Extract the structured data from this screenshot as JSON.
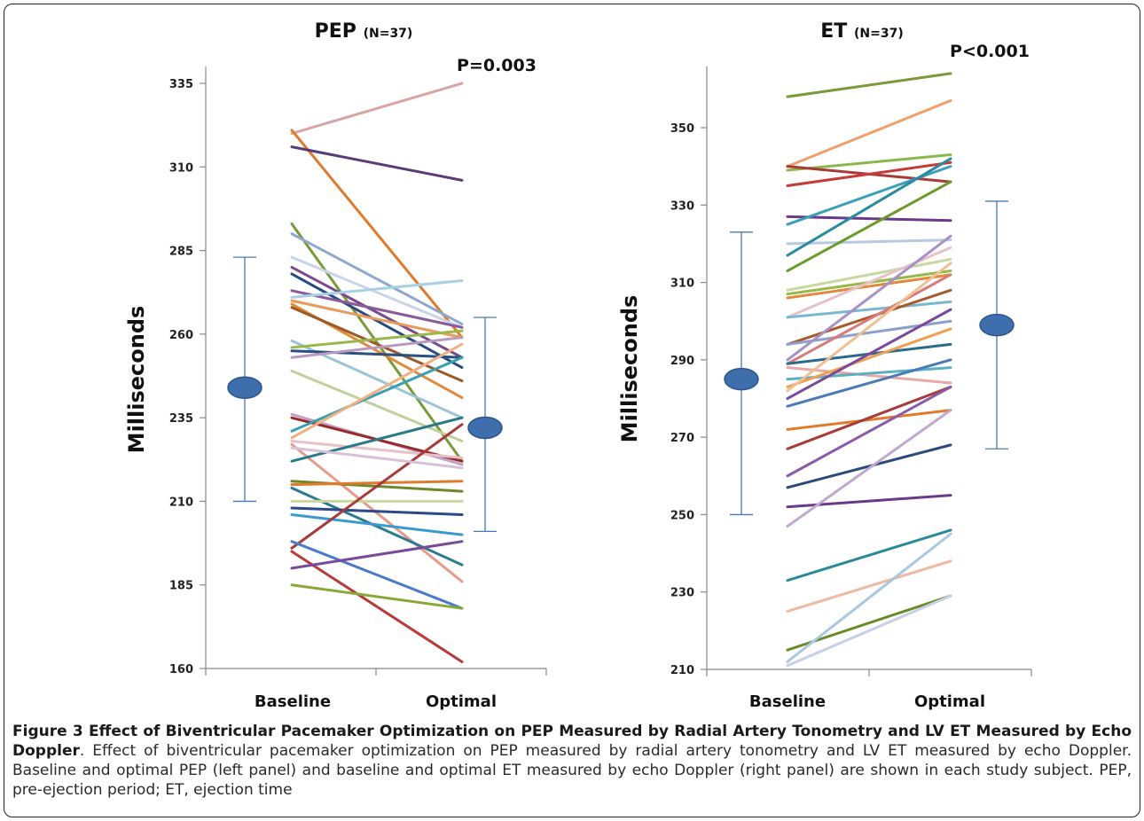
{
  "caption": {
    "title": "Figure 3 Effect of Biventricular Pacemaker Optimization on PEP Measured by Radial Artery Tonometry and LV ET Measured by Echo Doppler",
    "body": ". Effect of biventricular pacemaker optimization on PEP measured by radial artery tonometry and LV ET measured by echo Doppler. Baseline and optimal PEP (left panel) and baseline and optimal ET measured by echo Doppler (right panel) are shown in each study subject. PEP, pre-ejection period; ET, ejection time"
  },
  "chart_data": [
    {
      "type": "line",
      "title": "PEP",
      "title_n": "(N=37)",
      "p_value": "P=0.003",
      "ylabel": "Milliseconds",
      "categories": [
        "Baseline",
        "Optimal"
      ],
      "ylim": [
        160,
        340
      ],
      "yticks": [
        160,
        185,
        210,
        235,
        260,
        285,
        310,
        335
      ],
      "series": [
        {
          "values": [
            320,
            335
          ],
          "color": "#d8a4a4"
        },
        {
          "values": [
            321,
            259
          ],
          "color": "#e07b2c"
        },
        {
          "values": [
            316,
            306
          ],
          "color": "#5a3a78"
        },
        {
          "values": [
            293,
            222
          ],
          "color": "#7a9a3a"
        },
        {
          "values": [
            290,
            263
          ],
          "color": "#8ea8d0"
        },
        {
          "values": [
            283,
            262
          ],
          "color": "#c9d3ea"
        },
        {
          "values": [
            280,
            253
          ],
          "color": "#7a4a8a"
        },
        {
          "values": [
            278,
            250
          ],
          "color": "#2a4a82"
        },
        {
          "values": [
            273,
            262
          ],
          "color": "#8a5a9a"
        },
        {
          "values": [
            271,
            276
          ],
          "color": "#a8d0e4"
        },
        {
          "values": [
            270,
            259
          ],
          "color": "#e89a5a"
        },
        {
          "values": [
            269,
            241
          ],
          "color": "#e38a3a"
        },
        {
          "values": [
            268,
            246
          ],
          "color": "#9a5a2a"
        },
        {
          "values": [
            258,
            235
          ],
          "color": "#9ac4d8"
        },
        {
          "values": [
            256,
            261
          ],
          "color": "#9ab84a"
        },
        {
          "values": [
            255,
            253
          ],
          "color": "#2a5080"
        },
        {
          "values": [
            253,
            259
          ],
          "color": "#b89ac0"
        },
        {
          "values": [
            249,
            228
          ],
          "color": "#c0d09a"
        },
        {
          "values": [
            236,
            221
          ],
          "color": "#c0a0c8"
        },
        {
          "values": [
            235,
            222
          ],
          "color": "#9a2a2a"
        },
        {
          "values": [
            231,
            253
          ],
          "color": "#3aa0b0"
        },
        {
          "values": [
            229,
            257
          ],
          "color": "#f0b080"
        },
        {
          "values": [
            228,
            223
          ],
          "color": "#e8c0c8"
        },
        {
          "values": [
            227,
            186
          ],
          "color": "#e89a8a"
        },
        {
          "values": [
            222,
            235
          ],
          "color": "#2a7a8a"
        },
        {
          "values": [
            216,
            213
          ],
          "color": "#6a8a2a"
        },
        {
          "values": [
            215,
            216
          ],
          "color": "#e07b2c"
        },
        {
          "values": [
            214,
            191
          ],
          "color": "#2a7a90"
        },
        {
          "values": [
            210,
            210
          ],
          "color": "#c8d8a0"
        },
        {
          "values": [
            208,
            206
          ],
          "color": "#2a4a8a"
        },
        {
          "values": [
            206,
            200
          ],
          "color": "#3a9ad0"
        },
        {
          "values": [
            196,
            233
          ],
          "color": "#a83a3a"
        },
        {
          "values": [
            195,
            162
          ],
          "color": "#b83a3a"
        },
        {
          "values": [
            198,
            178
          ],
          "color": "#4a7ac8"
        },
        {
          "values": [
            190,
            198
          ],
          "color": "#7a4a9a"
        },
        {
          "values": [
            185,
            178
          ],
          "color": "#8aa83a"
        },
        {
          "values": [
            226,
            220
          ],
          "color": "#d8c0d8"
        }
      ],
      "summary": {
        "means": [
          244,
          232
        ],
        "upper": [
          283,
          265
        ],
        "lower": [
          210,
          201
        ]
      }
    },
    {
      "type": "line",
      "title": "ET",
      "title_n": "(N=37)",
      "p_value": "P<0.001",
      "ylabel": "Milliseconds",
      "categories": [
        "Baseline",
        "Optimal"
      ],
      "ylim": [
        210,
        370
      ],
      "yticks": [
        210,
        230,
        250,
        270,
        290,
        310,
        330,
        350
      ],
      "series": [
        {
          "values": [
            358,
            364
          ],
          "color": "#7a9a3a"
        },
        {
          "values": [
            340,
            357
          ],
          "color": "#f0a070"
        },
        {
          "values": [
            339,
            343
          ],
          "color": "#8ab84a"
        },
        {
          "values": [
            340,
            336
          ],
          "color": "#a83a3a"
        },
        {
          "values": [
            335,
            341
          ],
          "color": "#c83a3a"
        },
        {
          "values": [
            327,
            326
          ],
          "color": "#6a3a8a"
        },
        {
          "values": [
            325,
            340
          ],
          "color": "#3aa0b8"
        },
        {
          "values": [
            320,
            321
          ],
          "color": "#b8c8e0"
        },
        {
          "values": [
            317,
            342
          ],
          "color": "#2a8aa0"
        },
        {
          "values": [
            313,
            336
          ],
          "color": "#6a9a2a"
        },
        {
          "values": [
            308,
            316
          ],
          "color": "#c8d8a0"
        },
        {
          "values": [
            307,
            313
          ],
          "color": "#9ab84a"
        },
        {
          "values": [
            306,
            312
          ],
          "color": "#e08a3a"
        },
        {
          "values": [
            301,
            319
          ],
          "color": "#e8c0c8"
        },
        {
          "values": [
            301,
            305
          ],
          "color": "#7ab8d0"
        },
        {
          "values": [
            294,
            308
          ],
          "color": "#a85a2a"
        },
        {
          "values": [
            294,
            300
          ],
          "color": "#8aa0d0"
        },
        {
          "values": [
            290,
            322
          ],
          "color": "#a890c8"
        },
        {
          "values": [
            289,
            312
          ],
          "color": "#d87a7a"
        },
        {
          "values": [
            289,
            294
          ],
          "color": "#2a6a8a"
        },
        {
          "values": [
            288,
            284
          ],
          "color": "#e8a8a8"
        },
        {
          "values": [
            285,
            288
          ],
          "color": "#5ab0c0"
        },
        {
          "values": [
            283,
            298
          ],
          "color": "#f0a050"
        },
        {
          "values": [
            282,
            315
          ],
          "color": "#f0c090"
        },
        {
          "values": [
            280,
            303
          ],
          "color": "#7a4a9a"
        },
        {
          "values": [
            278,
            290
          ],
          "color": "#4a7ab8"
        },
        {
          "values": [
            272,
            277
          ],
          "color": "#e07b2c"
        },
        {
          "values": [
            267,
            283
          ],
          "color": "#a83a3a"
        },
        {
          "values": [
            260,
            283
          ],
          "color": "#8a5aaa"
        },
        {
          "values": [
            257,
            268
          ],
          "color": "#2a4a7a"
        },
        {
          "values": [
            252,
            255
          ],
          "color": "#6a3a8a"
        },
        {
          "values": [
            247,
            277
          ],
          "color": "#c0a8d0"
        },
        {
          "values": [
            233,
            246
          ],
          "color": "#2a8a9a"
        },
        {
          "values": [
            225,
            238
          ],
          "color": "#f0b8a0"
        },
        {
          "values": [
            215,
            229
          ],
          "color": "#6a8a2a"
        },
        {
          "values": [
            212,
            245
          ],
          "color": "#a8c8e0"
        },
        {
          "values": [
            211,
            229
          ],
          "color": "#c8d0e8"
        }
      ],
      "summary": {
        "means": [
          285,
          299
        ],
        "upper": [
          323,
          331
        ],
        "lower": [
          250,
          267
        ]
      }
    }
  ],
  "style": {
    "axis_color": "#888888",
    "marker_color": "#3f6ead",
    "marker_stroke": "#2f5590",
    "errbar_color": "#4a78b8"
  }
}
